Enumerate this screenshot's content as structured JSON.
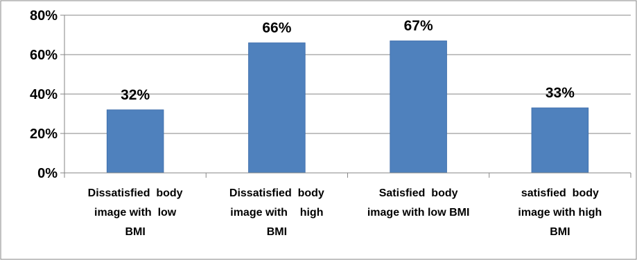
{
  "chart_data": {
    "type": "bar",
    "categories": [
      [
        "Dissatisfied  body",
        "image with  low",
        "BMI"
      ],
      [
        "Dissatisfied  body",
        "image with    high",
        "BMI"
      ],
      [
        "Satisfied  body",
        "image with low BMI"
      ],
      [
        "satisfied  body",
        "image with high",
        "BMI"
      ]
    ],
    "values": [
      32,
      66,
      67,
      33
    ],
    "data_labels": [
      "32%",
      "66%",
      "67%",
      "33%"
    ],
    "ylim": [
      0,
      80
    ],
    "yticks": [
      0,
      20,
      40,
      60,
      80
    ],
    "ytick_labels": [
      "0%",
      "20%",
      "40%",
      "60%",
      "80%"
    ],
    "grid": true,
    "legend": "none",
    "title": "",
    "xlabel": "",
    "ylabel": "",
    "colors": {
      "bar": "#4F81BD",
      "bar_stroke": "#3A6AA8",
      "grid": "#868686",
      "axis": "#868686",
      "frame": "#868686"
    }
  }
}
